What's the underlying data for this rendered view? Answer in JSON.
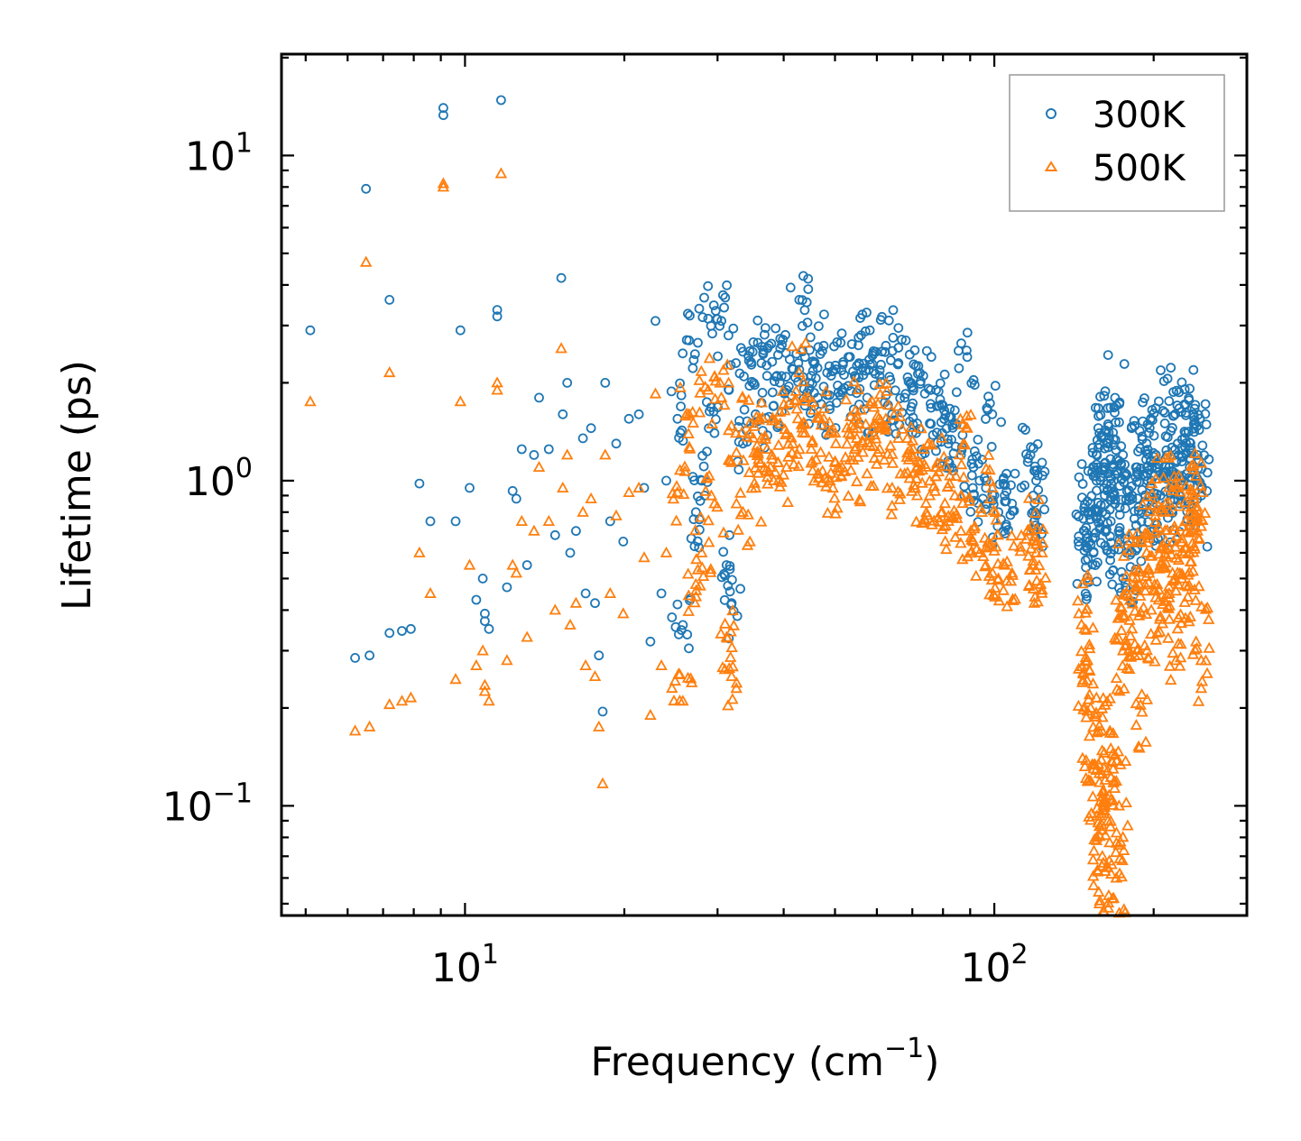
{
  "chart_data": {
    "type": "scatter",
    "title": "",
    "xlabel": "Frequency (cm",
    "xlabel_sup": "−1",
    "xlabel_tail": ")",
    "ylabel": "Lifetime (ps)",
    "xscale": "log",
    "yscale": "log",
    "xlim": [
      4.5,
      300
    ],
    "ylim": [
      0.046,
      20.5
    ],
    "x_ticks": [
      {
        "value": 10,
        "base": "10",
        "exp": "1"
      },
      {
        "value": 100,
        "base": "10",
        "exp": "2"
      }
    ],
    "y_ticks": [
      {
        "value": 0.1,
        "base": "10",
        "exp": "−1"
      },
      {
        "value": 1,
        "base": "10",
        "exp": "0"
      },
      {
        "value": 10,
        "base": "10",
        "exp": "1"
      }
    ],
    "legend_position": "top-right",
    "series": [
      {
        "name": "300K",
        "marker": "circle",
        "color": "#1f77b4",
        "points": [
          [
            5.1,
            2.9
          ],
          [
            6.2,
            0.285
          ],
          [
            6.5,
            7.9
          ],
          [
            6.6,
            0.29
          ],
          [
            7.2,
            3.6
          ],
          [
            7.2,
            0.34
          ],
          [
            7.6,
            0.345
          ],
          [
            7.9,
            0.35
          ],
          [
            8.2,
            0.98
          ],
          [
            8.6,
            0.75
          ],
          [
            9.1,
            14
          ],
          [
            9.1,
            13.3
          ],
          [
            9.6,
            0.75
          ],
          [
            9.8,
            2.9
          ],
          [
            10.2,
            0.95
          ],
          [
            10.5,
            0.43
          ],
          [
            10.8,
            0.5
          ],
          [
            10.9,
            0.39
          ],
          [
            10.9,
            0.37
          ],
          [
            11.1,
            0.35
          ],
          [
            11.5,
            3.2
          ],
          [
            11.5,
            3.35
          ],
          [
            11.7,
            14.8
          ],
          [
            12.0,
            0.47
          ],
          [
            12.3,
            0.93
          ],
          [
            12.5,
            0.88
          ],
          [
            12.8,
            1.25
          ],
          [
            13.1,
            0.55
          ],
          [
            13.5,
            1.2
          ],
          [
            13.8,
            1.8
          ],
          [
            14.4,
            1.25
          ],
          [
            14.8,
            0.68
          ],
          [
            15.2,
            4.2
          ],
          [
            15.3,
            1.6
          ],
          [
            15.6,
            2.0
          ],
          [
            15.8,
            0.6
          ],
          [
            16.2,
            0.7
          ],
          [
            16.7,
            1.35
          ],
          [
            16.9,
            0.45
          ],
          [
            17.3,
            1.45
          ],
          [
            17.6,
            0.42
          ],
          [
            17.9,
            0.29
          ],
          [
            18.2,
            0.195
          ],
          [
            18.4,
            2.0
          ],
          [
            18.8,
            0.75
          ],
          [
            19.3,
            1.3
          ],
          [
            19.9,
            0.65
          ],
          [
            20.4,
            1.55
          ],
          [
            21.3,
            1.6
          ],
          [
            21.8,
            0.95
          ],
          [
            22.4,
            0.32
          ],
          [
            22.9,
            3.1
          ],
          [
            23.5,
            0.45
          ],
          [
            24.0,
            1.0
          ],
          [
            24.6,
            0.38
          ],
          [
            25.2,
            1.55
          ],
          [
            25.8,
            0.36
          ],
          [
            26.5,
            2.7
          ],
          [
            27.3,
            0.8
          ],
          [
            28.0,
            1.0
          ],
          [
            28.8,
            3.15
          ],
          [
            29.6,
            1.4
          ],
          [
            30.5,
            3.1
          ],
          [
            31.2,
            0.55
          ],
          [
            31.9,
            0.42
          ],
          [
            32.5,
            2.3
          ],
          [
            33.5,
            1.3
          ],
          [
            34.5,
            2.5
          ],
          [
            35.4,
            1.6
          ],
          [
            36.3,
            2.3
          ],
          [
            37.2,
            2.1
          ],
          [
            38.3,
            1.7
          ],
          [
            39.4,
            2.55
          ],
          [
            40.5,
            1.9
          ],
          [
            41.6,
            2.2
          ],
          [
            42.8,
            3.6
          ],
          [
            43.9,
            2.4
          ],
          [
            45.1,
            2.1
          ],
          [
            46.4,
            1.8
          ],
          [
            47.6,
            2.6
          ],
          [
            48.9,
            1.7
          ],
          [
            50.2,
            2.2
          ],
          [
            51.6,
            1.9
          ],
          [
            53.0,
            2.4
          ],
          [
            54.5,
            2.1
          ],
          [
            56.0,
            2.8
          ],
          [
            57.5,
            1.8
          ],
          [
            59.1,
            2.5
          ],
          [
            60.7,
            2.1
          ],
          [
            62.4,
            2.6
          ],
          [
            64.1,
            1.6
          ],
          [
            65.9,
            2.3
          ],
          [
            67.7,
            1.8
          ],
          [
            69.6,
            2.0
          ],
          [
            71.5,
            1.5
          ],
          [
            73.4,
            2.1
          ],
          [
            75.5,
            1.5
          ],
          [
            77.6,
            1.9
          ],
          [
            79.7,
            1.4
          ],
          [
            81.9,
            1.3
          ],
          [
            84.2,
            1.5
          ],
          [
            86.5,
            1.2
          ],
          [
            88.9,
            2.4
          ],
          [
            91.3,
            1.1
          ],
          [
            93.8,
            1.0
          ],
          [
            96.4,
            0.95
          ],
          [
            99.1,
            1.6
          ],
          [
            101.8,
            0.8
          ],
          [
            104.6,
            0.9
          ],
          [
            108.0,
            0.85
          ],
          [
            117.0,
            1.2
          ],
          [
            118.5,
            0.9
          ],
          [
            119.0,
            0.75
          ],
          [
            120.0,
            1.0
          ],
          [
            148,
            0.7
          ],
          [
            150,
            0.62
          ],
          [
            152,
            0.85
          ],
          [
            154,
            0.6
          ],
          [
            156,
            1.0
          ],
          [
            158,
            1.4
          ],
          [
            160,
            0.8
          ],
          [
            162,
            1.1
          ],
          [
            164,
            1.3
          ],
          [
            166,
            0.75
          ],
          [
            168,
            0.9
          ],
          [
            170,
            1.7
          ],
          [
            172,
            0.7
          ],
          [
            175,
            1.2
          ],
          [
            178,
            0.6
          ],
          [
            182,
            0.9
          ],
          [
            186,
            1.1
          ],
          [
            190,
            0.8
          ],
          [
            194,
            1.3
          ],
          [
            198,
            1.0
          ],
          [
            202,
            1.2
          ],
          [
            206,
            0.9
          ],
          [
            210,
            1.5
          ],
          [
            214,
            1.1
          ],
          [
            218,
            0.95
          ],
          [
            222,
            1.3
          ],
          [
            226,
            1.0
          ],
          [
            230,
            1.4
          ],
          [
            234,
            1.1
          ],
          [
            238,
            1.6
          ],
          [
            242,
            1.2
          ],
          [
            246,
            0.9
          ]
        ]
      },
      {
        "name": "500K",
        "marker": "triangle",
        "color": "#ff7f0e",
        "points": [
          [
            5.1,
            1.75
          ],
          [
            6.2,
            0.17
          ],
          [
            6.5,
            4.7
          ],
          [
            6.6,
            0.175
          ],
          [
            7.2,
            2.15
          ],
          [
            7.2,
            0.205
          ],
          [
            7.6,
            0.21
          ],
          [
            7.9,
            0.215
          ],
          [
            8.2,
            0.6
          ],
          [
            8.6,
            0.45
          ],
          [
            9.1,
            8.2
          ],
          [
            9.1,
            8.0
          ],
          [
            9.6,
            0.245
          ],
          [
            9.8,
            1.75
          ],
          [
            10.2,
            0.55
          ],
          [
            10.5,
            0.27
          ],
          [
            10.8,
            0.3
          ],
          [
            10.9,
            0.235
          ],
          [
            10.9,
            0.225
          ],
          [
            11.1,
            0.21
          ],
          [
            11.5,
            1.9
          ],
          [
            11.5,
            2.0
          ],
          [
            11.7,
            8.8
          ],
          [
            12.0,
            0.28
          ],
          [
            12.3,
            0.55
          ],
          [
            12.5,
            0.52
          ],
          [
            12.8,
            0.75
          ],
          [
            13.1,
            0.33
          ],
          [
            13.5,
            0.7
          ],
          [
            13.8,
            1.1
          ],
          [
            14.4,
            0.75
          ],
          [
            14.8,
            0.4
          ],
          [
            15.2,
            2.55
          ],
          [
            15.3,
            0.95
          ],
          [
            15.6,
            1.2
          ],
          [
            15.8,
            0.36
          ],
          [
            16.2,
            0.42
          ],
          [
            16.7,
            0.8
          ],
          [
            16.9,
            0.27
          ],
          [
            17.3,
            0.88
          ],
          [
            17.6,
            0.25
          ],
          [
            17.9,
            0.175
          ],
          [
            18.2,
            0.117
          ],
          [
            18.4,
            1.2
          ],
          [
            18.8,
            0.45
          ],
          [
            19.3,
            0.78
          ],
          [
            19.9,
            0.39
          ],
          [
            20.4,
            0.92
          ],
          [
            21.3,
            0.95
          ],
          [
            21.8,
            0.58
          ],
          [
            22.4,
            0.19
          ],
          [
            22.9,
            1.85
          ],
          [
            23.5,
            0.27
          ],
          [
            24.0,
            0.6
          ],
          [
            24.6,
            0.23
          ],
          [
            25.2,
            0.92
          ],
          [
            25.8,
            0.21
          ],
          [
            26.5,
            1.6
          ],
          [
            27.3,
            0.48
          ],
          [
            28.0,
            0.6
          ],
          [
            28.8,
            1.9
          ],
          [
            29.6,
            0.85
          ],
          [
            30.5,
            1.8
          ],
          [
            31.2,
            0.33
          ],
          [
            31.9,
            0.25
          ],
          [
            32.5,
            1.4
          ],
          [
            33.5,
            0.8
          ],
          [
            34.5,
            1.5
          ],
          [
            35.4,
            0.95
          ],
          [
            36.3,
            1.35
          ],
          [
            37.2,
            1.25
          ],
          [
            38.3,
            1.0
          ],
          [
            39.4,
            1.5
          ],
          [
            40.5,
            1.1
          ],
          [
            41.6,
            1.3
          ],
          [
            42.8,
            2.15
          ],
          [
            43.9,
            1.4
          ],
          [
            45.1,
            1.25
          ],
          [
            46.4,
            1.05
          ],
          [
            47.6,
            1.55
          ],
          [
            48.9,
            1.0
          ],
          [
            50.2,
            1.3
          ],
          [
            51.6,
            1.1
          ],
          [
            53.0,
            1.4
          ],
          [
            54.5,
            1.25
          ],
          [
            56.0,
            1.65
          ],
          [
            57.5,
            1.05
          ],
          [
            59.1,
            1.45
          ],
          [
            60.7,
            1.25
          ],
          [
            62.4,
            1.55
          ],
          [
            64.1,
            0.95
          ],
          [
            65.9,
            1.35
          ],
          [
            67.7,
            1.05
          ],
          [
            69.6,
            1.2
          ],
          [
            71.5,
            0.9
          ],
          [
            73.4,
            1.25
          ],
          [
            75.5,
            0.9
          ],
          [
            77.6,
            1.1
          ],
          [
            79.7,
            0.8
          ],
          [
            81.9,
            0.75
          ],
          [
            84.2,
            0.9
          ],
          [
            86.5,
            0.7
          ],
          [
            88.9,
            1.45
          ],
          [
            91.3,
            0.65
          ],
          [
            93.8,
            0.6
          ],
          [
            96.4,
            0.55
          ],
          [
            99.1,
            0.95
          ],
          [
            101.8,
            0.5
          ],
          [
            104.6,
            0.55
          ],
          [
            108.0,
            0.52
          ],
          [
            117.0,
            0.7
          ],
          [
            118.5,
            0.55
          ],
          [
            119.0,
            0.42
          ],
          [
            120.0,
            0.6
          ],
          [
            148,
            0.35
          ],
          [
            150,
            0.28
          ],
          [
            152,
            0.2
          ],
          [
            154,
            0.13
          ],
          [
            156,
            0.08
          ],
          [
            158,
            0.05
          ],
          [
            160,
            0.07
          ],
          [
            162,
            0.12
          ],
          [
            164,
            0.09
          ],
          [
            166,
            0.15
          ],
          [
            168,
            0.052
          ],
          [
            170,
            0.06
          ],
          [
            172,
            0.1
          ],
          [
            175,
            0.3
          ],
          [
            178,
            0.45
          ],
          [
            182,
            0.35
          ],
          [
            186,
            0.5
          ],
          [
            190,
            0.22
          ],
          [
            194,
            0.6
          ],
          [
            198,
            0.4
          ],
          [
            202,
            0.7
          ],
          [
            206,
            0.55
          ],
          [
            210,
            0.8
          ],
          [
            214,
            0.45
          ],
          [
            218,
            0.65
          ],
          [
            222,
            0.35
          ],
          [
            226,
            0.5
          ],
          [
            230,
            0.75
          ],
          [
            234,
            0.6
          ],
          [
            238,
            0.9
          ],
          [
            242,
            0.7
          ],
          [
            246,
            0.28
          ]
        ]
      }
    ]
  }
}
